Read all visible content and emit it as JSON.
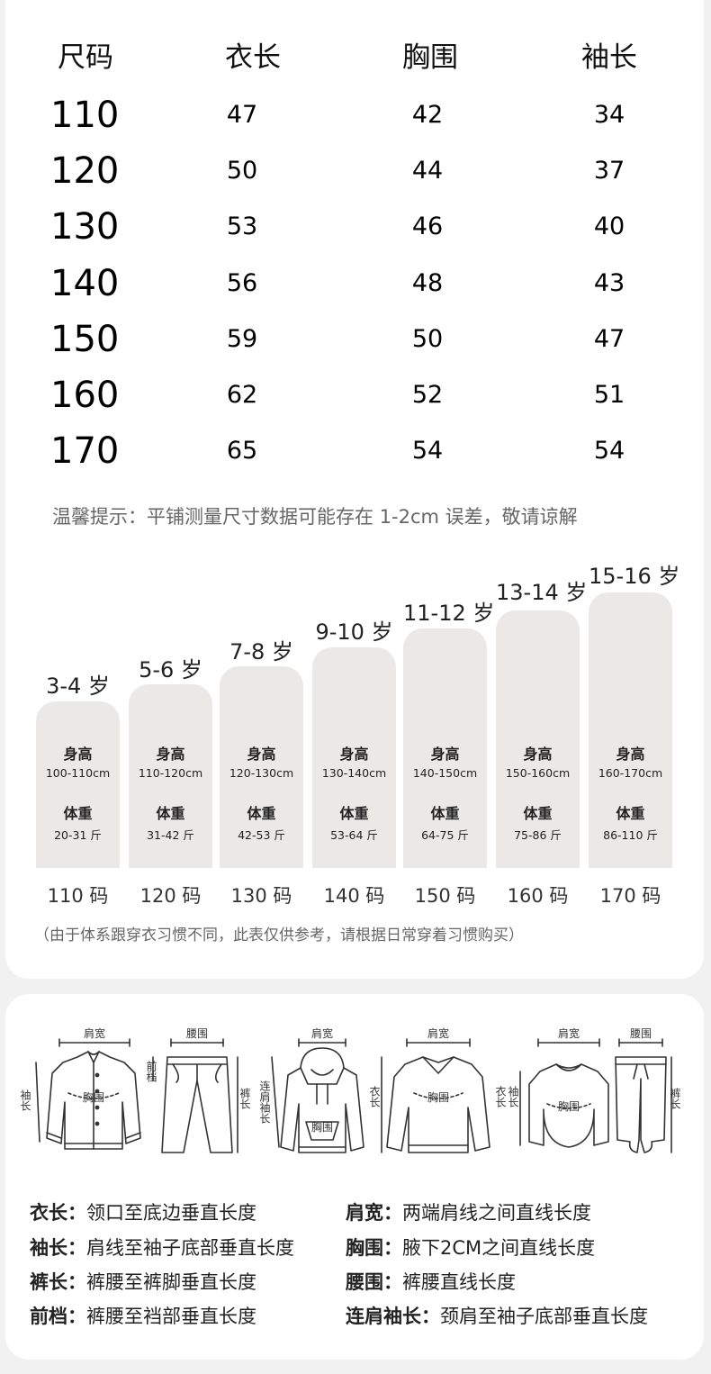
{
  "table": {
    "headers": [
      "尺码",
      "衣长",
      "胸围",
      "袖长"
    ],
    "rows": [
      {
        "size": "110",
        "length": "47",
        "chest": "42",
        "sleeve": "34"
      },
      {
        "size": "120",
        "length": "50",
        "chest": "44",
        "sleeve": "37"
      },
      {
        "size": "130",
        "length": "53",
        "chest": "46",
        "sleeve": "40"
      },
      {
        "size": "140",
        "length": "56",
        "chest": "48",
        "sleeve": "43"
      },
      {
        "size": "150",
        "length": "59",
        "chest": "50",
        "sleeve": "47"
      },
      {
        "size": "160",
        "length": "62",
        "chest": "52",
        "sleeve": "51"
      },
      {
        "size": "170",
        "length": "65",
        "chest": "54",
        "sleeve": "54"
      }
    ]
  },
  "tip": "温馨提示：平铺测量尺寸数据可能存在 1-2cm 误差，敬请谅解",
  "age_chart": {
    "height_label": "身高",
    "weight_label": "体重",
    "columns": [
      {
        "age": "3-4 岁",
        "height": "100-110cm",
        "weight": "20-31 斤",
        "size": "110 码"
      },
      {
        "age": "5-6 岁",
        "height": "110-120cm",
        "weight": "31-42 斤",
        "size": "120 码"
      },
      {
        "age": "7-8 岁",
        "height": "120-130cm",
        "weight": "42-53 斤",
        "size": "130 码"
      },
      {
        "age": "9-10 岁",
        "height": "130-140cm",
        "weight": "53-64 斤",
        "size": "140 码"
      },
      {
        "age": "11-12 岁",
        "height": "140-150cm",
        "weight": "64-75 斤",
        "size": "150 码"
      },
      {
        "age": "13-14 岁",
        "height": "150-160cm",
        "weight": "75-86 斤",
        "size": "160 码"
      },
      {
        "age": "15-16 岁",
        "height": "160-170cm",
        "weight": "86-110 斤",
        "size": "170 码"
      }
    ]
  },
  "note": "（由于体系跟穿衣习惯不同，此表仅供参考，请根据日常穿着习惯购买）",
  "diagram_labels": {
    "shoulder": "肩宽",
    "waist": "腰围",
    "chest": "胸围",
    "sleeve": "袖长",
    "length": "衣长",
    "pants": "裤长",
    "rise": "前档",
    "raglan": "连肩袖长"
  },
  "definitions": [
    {
      "term": "衣长",
      "desc": "领口至底边垂直长度"
    },
    {
      "term": "肩宽",
      "desc": "两端肩线之间直线长度"
    },
    {
      "term": "袖长",
      "desc": "肩线至袖子底部垂直长度"
    },
    {
      "term": "胸围",
      "desc": "腋下2CM之间直线长度"
    },
    {
      "term": "裤长",
      "desc": "裤腰至裤脚垂直长度"
    },
    {
      "term": "腰围",
      "desc": "裤腰直线长度"
    },
    {
      "term": "前档",
      "desc": "裤腰至裆部垂直长度"
    },
    {
      "term": "连肩袖长",
      "desc": "颈肩至袖子底部垂直长度"
    }
  ]
}
